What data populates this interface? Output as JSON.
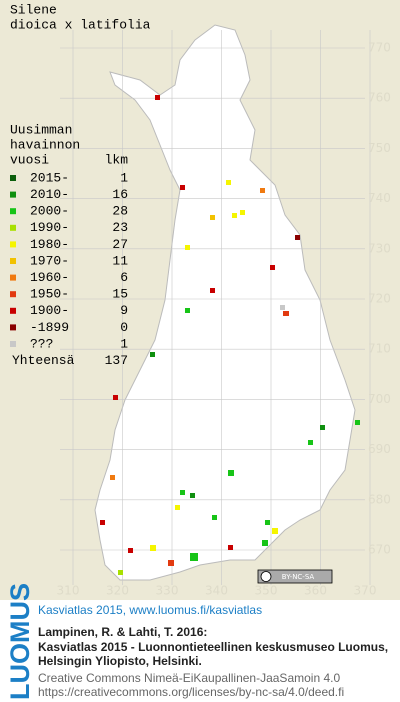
{
  "map": {
    "title_lines": [
      "Silene",
      "dioica x latifolia"
    ],
    "y_labels": [
      "770",
      "760",
      "750",
      "740",
      "730",
      "720",
      "710",
      "700",
      "690",
      "680",
      "670"
    ],
    "x_labels": [
      "310",
      "320",
      "330",
      "340",
      "350",
      "360",
      "370"
    ],
    "license_badge": "BY-NC-SA"
  },
  "legend": {
    "heading_lines": [
      "Uusimman",
      "havainnon"
    ],
    "col_year": "vuosi",
    "col_count": "lkm",
    "rows": [
      {
        "label": "2015-",
        "count": 1,
        "color": "#0b5e0b"
      },
      {
        "label": "2010-",
        "count": 16,
        "color": "#0f8f0f"
      },
      {
        "label": "2000-",
        "count": 28,
        "color": "#17c417"
      },
      {
        "label": "1990-",
        "count": 23,
        "color": "#a8e000"
      },
      {
        "label": "1980-",
        "count": 27,
        "color": "#f5f500"
      },
      {
        "label": "1970-",
        "count": 11,
        "color": "#f2c200"
      },
      {
        "label": "1960-",
        "count": 6,
        "color": "#f07a10"
      },
      {
        "label": "1950-",
        "count": 15,
        "color": "#e23a10"
      },
      {
        "label": "1900-",
        "count": 9,
        "color": "#c80000"
      },
      {
        "label": "-1899",
        "count": 0,
        "color": "#8a0000"
      },
      {
        "label": "???",
        "count": 1,
        "color": "#c8c8c8"
      }
    ],
    "total_label": "Yhteensä",
    "total": 137
  },
  "footer": {
    "logo": "LUOMUS",
    "link": "Kasviatlas 2015, www.luomus.fi/kasviatlas",
    "citation_lines": [
      "Lampinen, R. & Lahti, T. 2016:",
      "Kasviatlas 2015 - Luonnontieteellinen keskusmuseo Luomus,",
      "Helsingin Yliopisto, Helsinki."
    ],
    "license_lines": [
      "Creative Commons Nimeä-EiKaupallinen-JaaSamoin 4.0",
      "https://creativecommons.org/licenses/by-nc-sa/4.0/deed.fi"
    ]
  }
}
